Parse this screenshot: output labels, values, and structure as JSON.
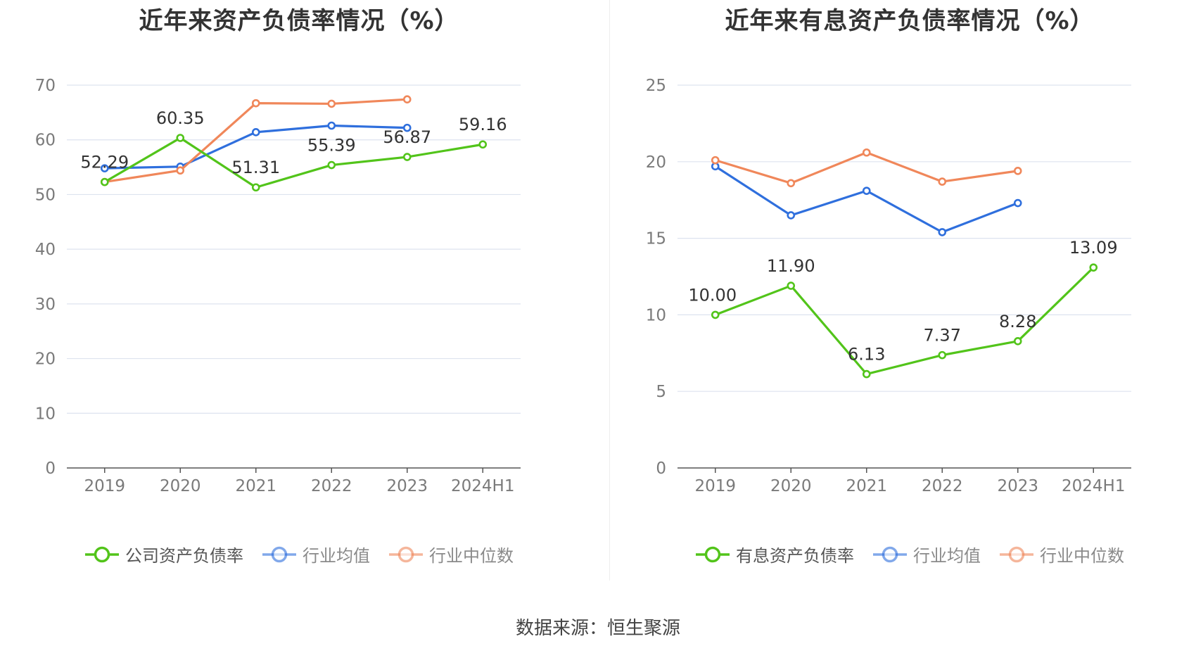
{
  "colors": {
    "green": "#52c41a",
    "blue": "#2f6fdd",
    "orange": "#f0875a",
    "grid": "#dde3ef",
    "axis": "#555555",
    "tick_text": "#7a7a7a",
    "label_text": "#333333"
  },
  "source_text": "数据来源：恒生聚源",
  "chart_data": [
    {
      "type": "line",
      "title": "近年来资产负债率情况（%）",
      "categories": [
        "2019",
        "2020",
        "2021",
        "2022",
        "2023",
        "2024H1"
      ],
      "ylim": [
        0,
        70
      ],
      "yticks": [
        0,
        10,
        20,
        30,
        40,
        50,
        60,
        70
      ],
      "grid": true,
      "legend_position": "bottom",
      "series": [
        {
          "name": "公司资产负债率",
          "color": "#52c41a",
          "values": [
            52.29,
            60.35,
            51.31,
            55.39,
            56.87,
            59.16
          ],
          "labels": [
            "52.29",
            "60.35",
            "51.31",
            "55.39",
            "56.87",
            "59.16"
          ],
          "active": true
        },
        {
          "name": "行业均值",
          "color": "#2f6fdd",
          "values": [
            54.8,
            55.1,
            61.4,
            62.6,
            62.2,
            null
          ],
          "active": false
        },
        {
          "name": "行业中位数",
          "color": "#f0875a",
          "values": [
            52.3,
            54.4,
            66.7,
            66.6,
            67.4,
            null
          ],
          "active": false
        }
      ]
    },
    {
      "type": "line",
      "title": "近年来有息资产负债率情况（%）",
      "categories": [
        "2019",
        "2020",
        "2021",
        "2022",
        "2023",
        "2024H1"
      ],
      "ylim": [
        0,
        25
      ],
      "yticks": [
        0,
        5,
        10,
        15,
        20,
        25
      ],
      "grid": true,
      "legend_position": "bottom",
      "series": [
        {
          "name": "有息资产负债率",
          "color": "#52c41a",
          "values": [
            10.0,
            11.9,
            6.13,
            7.37,
            8.28,
            13.09
          ],
          "labels": [
            "10.00",
            "11.90",
            "6.13",
            "7.37",
            "8.28",
            "13.09"
          ],
          "active": true
        },
        {
          "name": "行业均值",
          "color": "#2f6fdd",
          "values": [
            19.7,
            16.5,
            18.1,
            15.4,
            17.3,
            null
          ],
          "active": false
        },
        {
          "name": "行业中位数",
          "color": "#f0875a",
          "values": [
            20.1,
            18.6,
            20.6,
            18.7,
            19.4,
            null
          ],
          "active": false
        }
      ]
    }
  ]
}
